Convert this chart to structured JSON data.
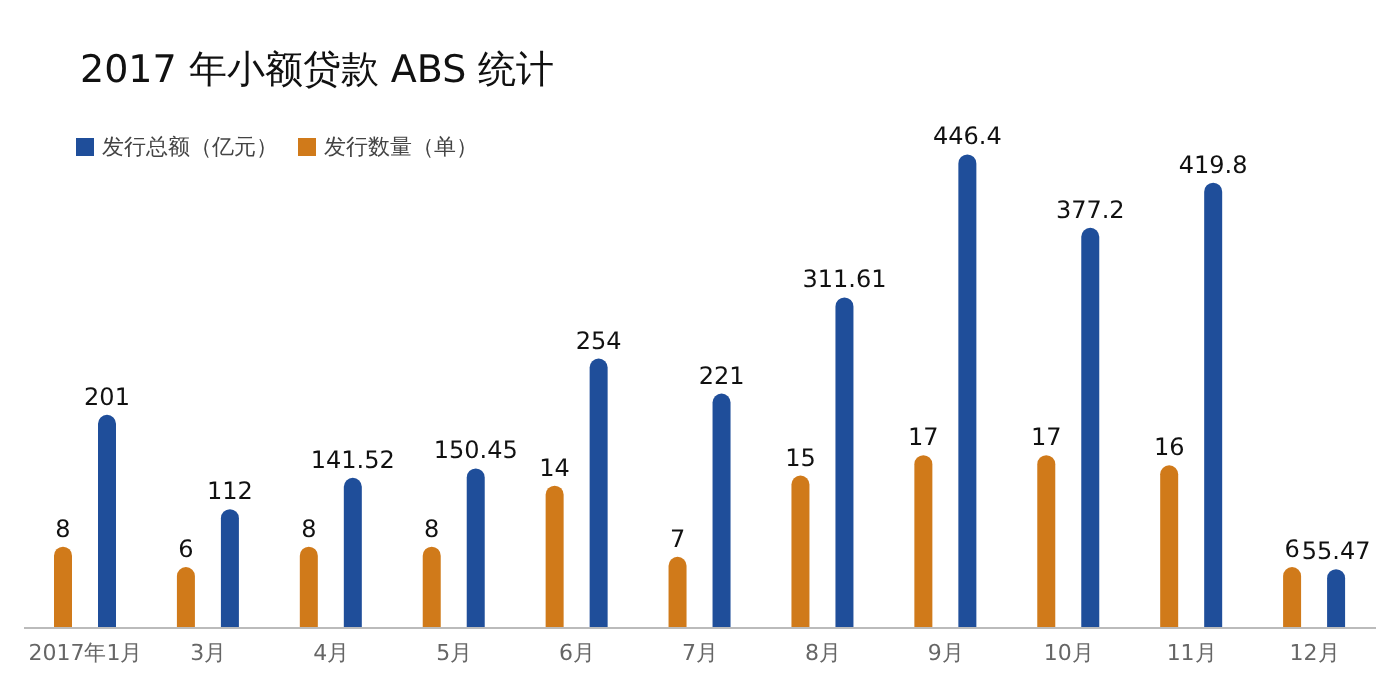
{
  "chart_data": {
    "type": "bar",
    "title": "2017 年小额贷款 ABS 统计",
    "categories": [
      "2017年1月",
      "3月",
      "4月",
      "5月",
      "6月",
      "7月",
      "8月",
      "9月",
      "10月",
      "11月",
      "12月"
    ],
    "series": [
      {
        "name": "发行数量（单）",
        "color": "#d07a1a",
        "values": [
          8,
          6,
          8,
          8,
          14,
          7,
          15,
          17,
          17,
          16,
          6
        ]
      },
      {
        "name": "发行总额（亿元）",
        "color": "#1f4e9a",
        "axis": "y2",
        "values": [
          201,
          112,
          141.52,
          150.45,
          254,
          221,
          311.61,
          446.4,
          377.2,
          419.8,
          55.47
        ]
      }
    ],
    "ylim": [
      0,
      48
    ],
    "y2lim": [
      0,
      460
    ],
    "legend": "top left",
    "tick_labels": "x",
    "data_labels": true
  }
}
